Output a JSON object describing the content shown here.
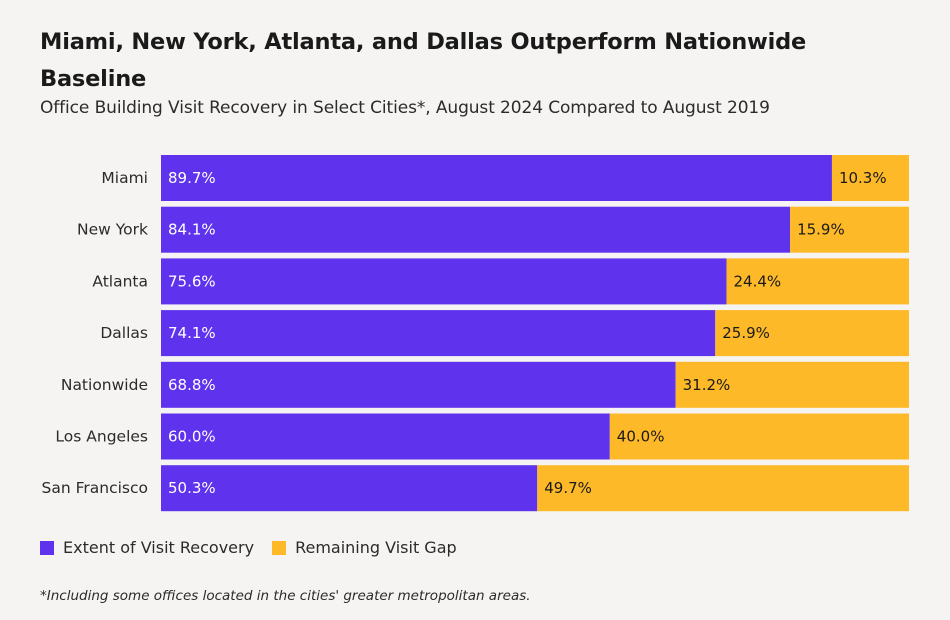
{
  "title": "Miami, New York, Atlanta, and Dallas Outperform Nationwide Baseline",
  "subtitle": "Office Building Visit Recovery in Select Cities*, August 2024 Compared to August 2019",
  "footnote": "*Including some offices located in the cities' greater metropolitan areas.",
  "colors": {
    "recovery": "#5f32ee",
    "gap": "#fdb927",
    "recovery_label": "#ffffff",
    "gap_label": "#1a1a1a"
  },
  "chart_data": {
    "type": "bar",
    "orientation": "horizontal",
    "stacked": true,
    "categories": [
      "Miami",
      "New York",
      "Atlanta",
      "Dallas",
      "Nationwide",
      "Los Angeles",
      "San Francisco"
    ],
    "series": [
      {
        "name": "Extent of Visit Recovery",
        "values": [
          89.7,
          84.1,
          75.6,
          74.1,
          68.8,
          60.0,
          50.3
        ],
        "labels": [
          "89.7%",
          "84.1%",
          "75.6%",
          "74.1%",
          "68.8%",
          "60.0%",
          "50.3%"
        ]
      },
      {
        "name": "Remaining Visit Gap",
        "values": [
          10.3,
          15.9,
          24.4,
          25.9,
          31.2,
          40.0,
          49.7
        ],
        "labels": [
          "10.3%",
          "15.9%",
          "24.4%",
          "25.9%",
          "31.2%",
          "40.0%",
          "49.7%"
        ]
      }
    ],
    "xlim": [
      0,
      100
    ],
    "grid": false,
    "legend_position": "bottom-left"
  }
}
